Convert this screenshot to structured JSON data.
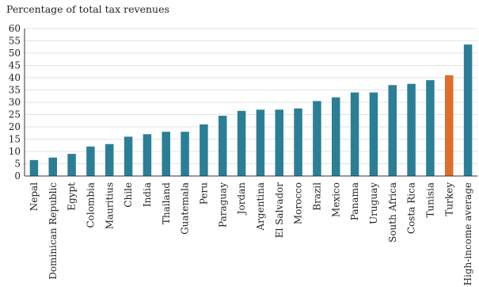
{
  "chart_data": {
    "type": "bar",
    "title": "Percentage of total tax revenues",
    "xlabel": "",
    "ylabel": "",
    "ylim": [
      0,
      60
    ],
    "yticks": [
      0,
      5,
      10,
      15,
      20,
      25,
      30,
      35,
      40,
      45,
      50,
      55,
      60
    ],
    "grid": true,
    "legend": "none",
    "colors": {
      "default": "#2a7f96",
      "highlight": "#e06d2b",
      "grid": "#e3e3e3",
      "axis": "#333333"
    },
    "highlight_category": "Turkey",
    "categories": [
      "Nepal",
      "Dominican Republic",
      "Egypt",
      "Colombia",
      "Mauritius",
      "Chile",
      "India",
      "Thailand",
      "Guatemala",
      "Peru",
      "Paraguay",
      "Jordan",
      "Argentina",
      "El Salvador",
      "Morocco",
      "Brazil",
      "Mexico",
      "Panama",
      "Uruguay",
      "South Africa",
      "Costa Rica",
      "Tunisia",
      "Turkey",
      "High-income average"
    ],
    "values": [
      6.5,
      7.5,
      9,
      12,
      13,
      16,
      17,
      18,
      18,
      21,
      24.5,
      26.5,
      27,
      27,
      27.5,
      30.5,
      32,
      34,
      34,
      37,
      37.5,
      39,
      41,
      53.5
    ]
  }
}
